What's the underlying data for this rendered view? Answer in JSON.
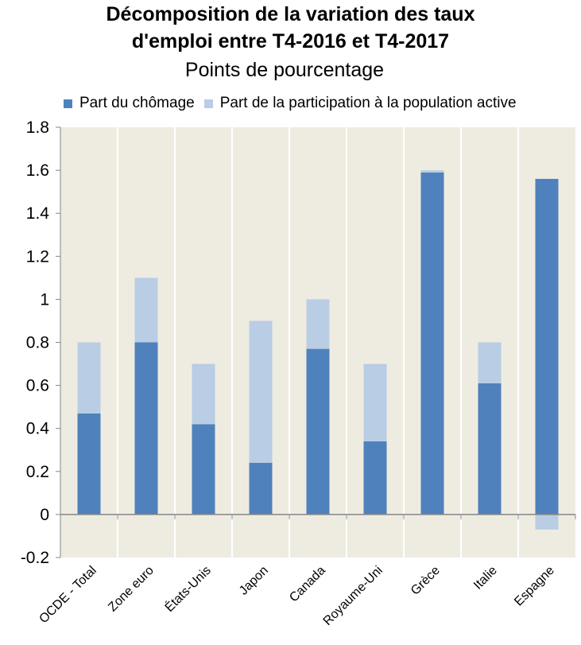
{
  "chart_data": {
    "type": "bar",
    "stacked": true,
    "title_line1": "Décomposition de la variation des taux",
    "title_line2": "d'emploi entre T4-2016 et T4-2017",
    "subtitle": "Points de pourcentage",
    "categories": [
      "OCDE - Total",
      "Zone euro",
      "États-Unis",
      "Japon",
      "Canada",
      "Royaume-Uni",
      "Grèce",
      "Italie",
      "Espagne"
    ],
    "series": [
      {
        "name": "Part du chômage",
        "color": "#4f81bd",
        "values": [
          0.47,
          0.8,
          0.42,
          0.24,
          0.77,
          0.34,
          1.59,
          0.61,
          1.56
        ]
      },
      {
        "name": "Part de la participation à la population active",
        "color": "#b9cde5",
        "values": [
          0.33,
          0.3,
          0.28,
          0.66,
          0.23,
          0.36,
          0.01,
          0.19,
          -0.07
        ]
      }
    ],
    "ylim": [
      -0.2,
      1.8
    ],
    "yticks": [
      "-0.2",
      "0",
      "0.2",
      "0.4",
      "0.6",
      "0.8",
      "1",
      "1.2",
      "1.4",
      "1.6",
      "1.8"
    ],
    "grid": "vertical",
    "plot_background": "#eeece1",
    "legend_position": "top"
  }
}
